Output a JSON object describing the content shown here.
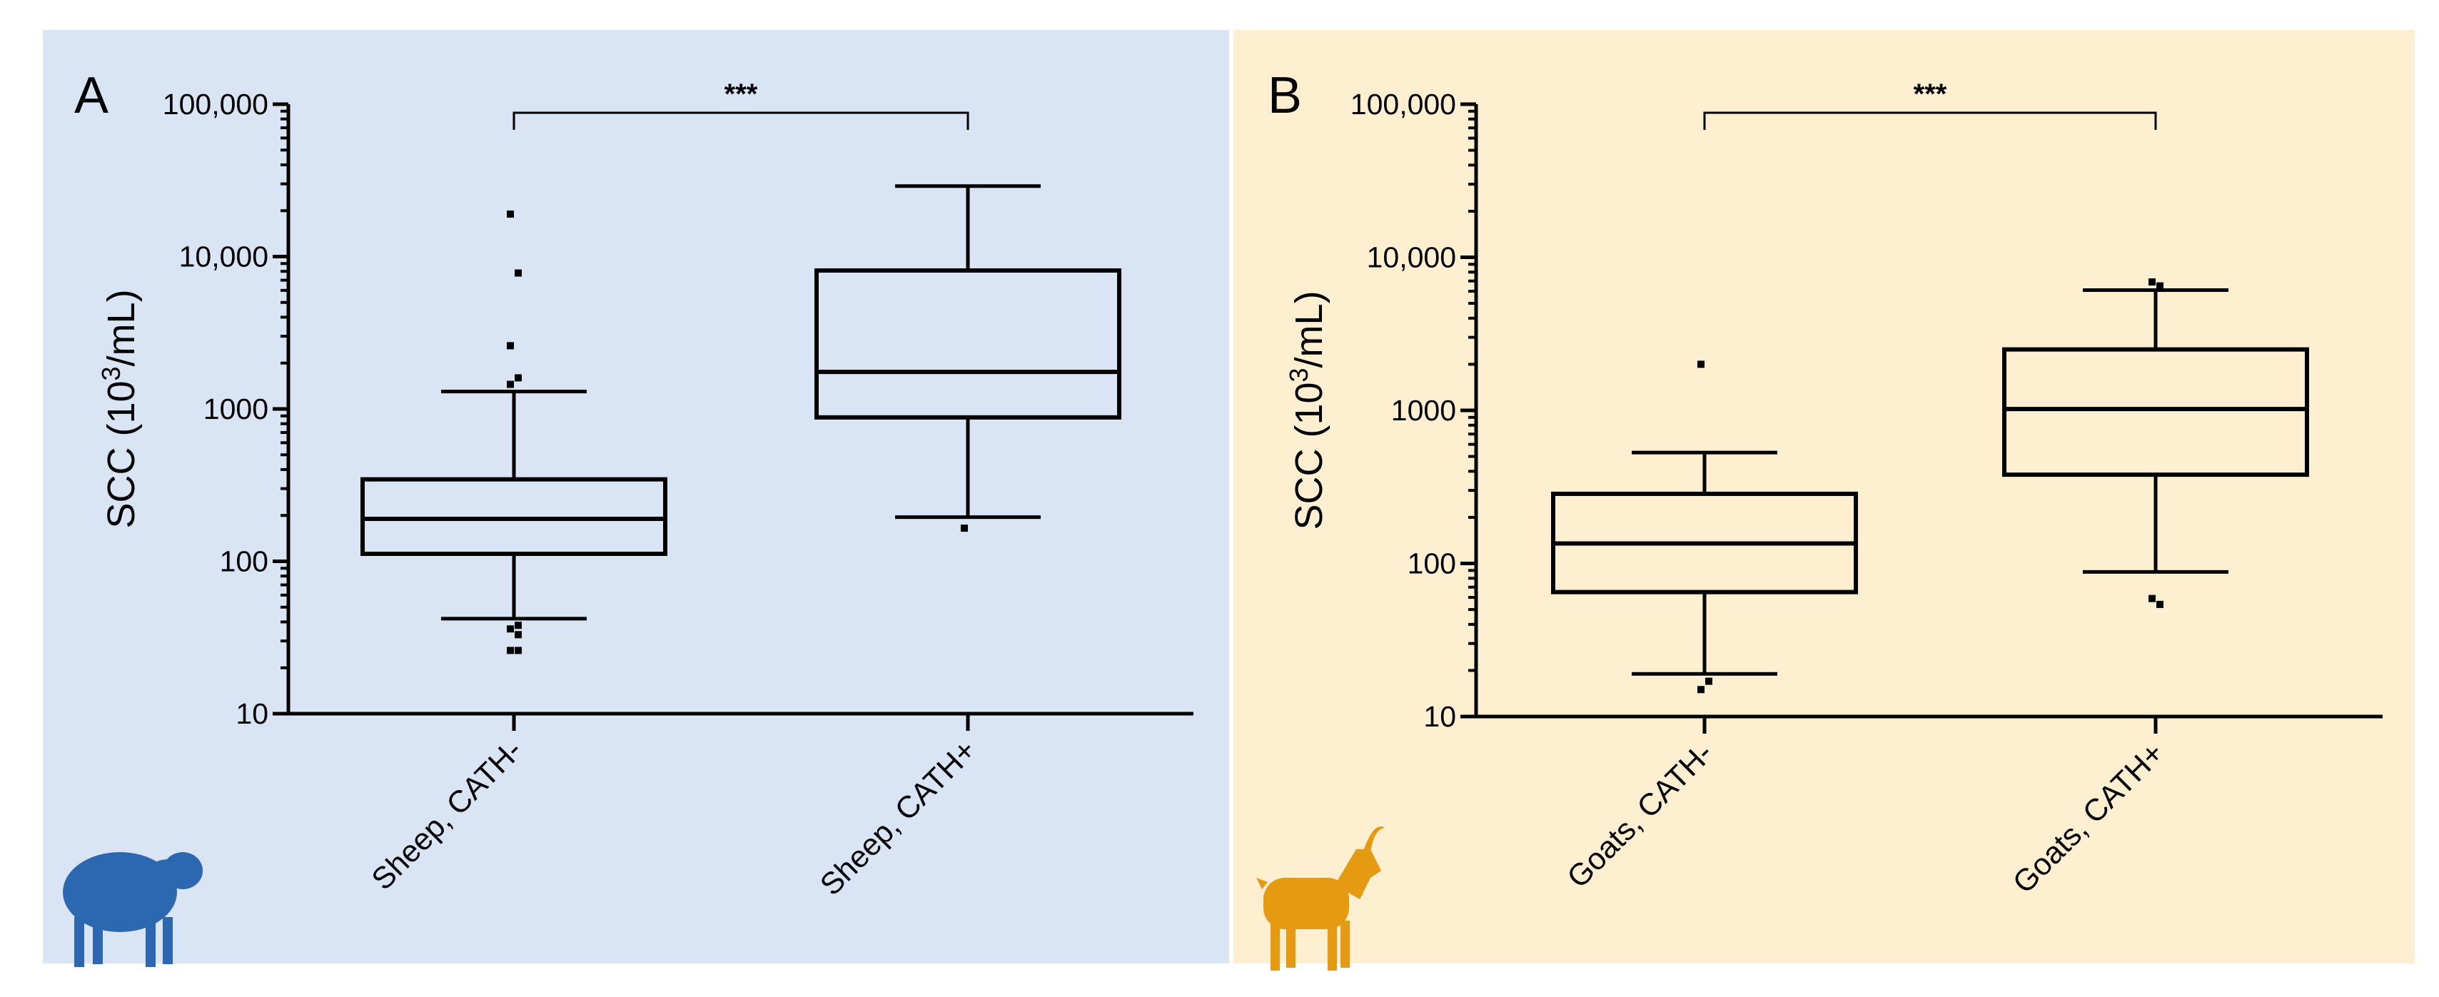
{
  "chart_data": [
    {
      "type": "box",
      "panel_label": "A",
      "ylabel_main": "SCC (10",
      "ylabel_sup": "3",
      "ylabel_tail": "/mL)",
      "yscale": "log",
      "ylim": [
        10,
        100000
      ],
      "yticks": [
        10,
        100,
        1000,
        10000,
        100000
      ],
      "ytick_labels": [
        "10",
        "100",
        "1000",
        "10,000",
        "100,000"
      ],
      "categories": [
        "Sheep, CATH-",
        "Sheep, CATH+"
      ],
      "significance": "***",
      "background": "#d9e5f5",
      "icon": "sheep-icon",
      "icon_color": "#2b68b0",
      "boxes": [
        {
          "whisker_low": 42,
          "q1": 112,
          "median": 190,
          "q3": 345,
          "whisker_high": 1300,
          "outliers": [
            19000,
            7800,
            2600,
            1600,
            1450,
            38,
            36,
            33,
            26,
            26
          ]
        },
        {
          "whisker_low": 195,
          "q1": 880,
          "median": 1750,
          "q3": 8100,
          "whisker_high": 29000,
          "outliers": [
            165
          ]
        }
      ]
    },
    {
      "type": "box",
      "panel_label": "B",
      "ylabel_main": "SCC (10",
      "ylabel_sup": "3",
      "ylabel_tail": "/mL)",
      "yscale": "log",
      "ylim": [
        10,
        100000
      ],
      "yticks": [
        10,
        100,
        1000,
        10000,
        100000
      ],
      "ytick_labels": [
        "10",
        "100",
        "1000",
        "10,000",
        "100,000"
      ],
      "categories": [
        "Goats, CATH-",
        "Goats, CATH+"
      ],
      "significance": "***",
      "background": "#fdefcf",
      "icon": "goat-icon",
      "icon_color": "#e69a12",
      "boxes": [
        {
          "whisker_low": 19,
          "q1": 65,
          "median": 135,
          "q3": 285,
          "whisker_high": 530,
          "outliers": [
            2000,
            17,
            15
          ]
        },
        {
          "whisker_low": 88,
          "q1": 380,
          "median": 1020,
          "q3": 2500,
          "whisker_high": 6100,
          "outliers": [
            6900,
            6500,
            59,
            54
          ]
        }
      ]
    }
  ]
}
